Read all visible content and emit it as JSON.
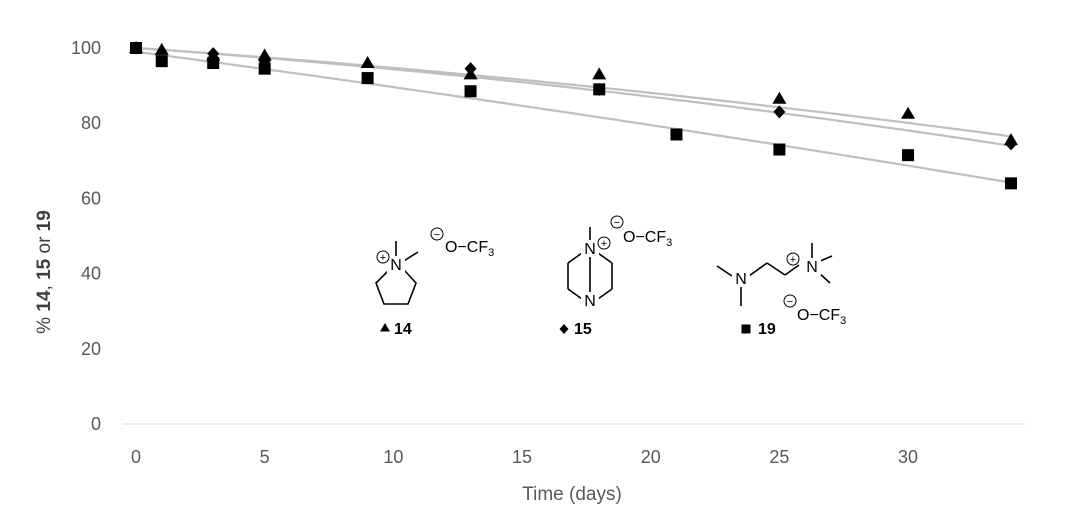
{
  "chart_data": {
    "type": "scatter",
    "xlabel": "Time (days)",
    "ylabel": {
      "prefix": "% ",
      "a": "14",
      "sep": ", ",
      "b": "15",
      "or": " or ",
      "c": "19"
    },
    "xlim": [
      0,
      34
    ],
    "ylim": [
      0,
      100
    ],
    "xticks": [
      0,
      5,
      10,
      15,
      20,
      25,
      30
    ],
    "yticks": [
      0,
      20,
      40,
      60,
      80,
      100
    ],
    "grid": false,
    "trendline_color": "#bfbfbf",
    "marker_color": "#000000",
    "series": [
      {
        "name": "14",
        "marker": "triangle",
        "x": [
          0,
          1,
          3,
          5,
          9,
          13,
          18,
          25,
          30,
          34
        ],
        "y": [
          100,
          99.5,
          98,
          98,
          96,
          93,
          93,
          86.5,
          82.5,
          75.5
        ],
        "trend": [
          100,
          96.8,
          90.2,
          76.5
        ]
      },
      {
        "name": "15",
        "marker": "diamond",
        "x": [
          0,
          3,
          5,
          13,
          18,
          25,
          34
        ],
        "y": [
          100,
          98.5,
          96.5,
          94.5,
          89,
          83,
          74.5
        ],
        "trend": [
          100,
          96.7,
          89.4,
          74
        ]
      },
      {
        "name": "19",
        "marker": "square",
        "x": [
          0,
          1,
          3,
          5,
          9,
          13,
          18,
          21,
          25,
          30,
          34
        ],
        "y": [
          100,
          96.5,
          96,
          94.5,
          92,
          88.5,
          89,
          77,
          73,
          71.5,
          64
        ],
        "trend": [
          99,
          92.5,
          82.6,
          64.2
        ]
      }
    ],
    "legend": [
      {
        "marker": "triangle",
        "label": "14"
      },
      {
        "marker": "diamond",
        "label": "15"
      },
      {
        "marker": "square",
        "label": "19"
      }
    ],
    "structure_text": {
      "anion": "O",
      "dash": "−",
      "cf": "CF",
      "sub3": "3",
      "nitrogen": "N",
      "plus": "+",
      "minus": "−"
    }
  }
}
